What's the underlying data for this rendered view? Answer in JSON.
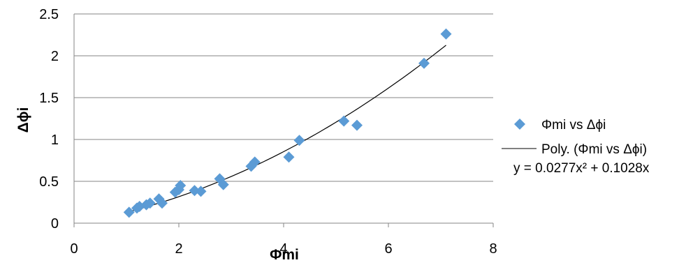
{
  "chart_data": {
    "type": "scatter",
    "xlabel": "Φmi",
    "ylabel": "Δϕi",
    "xlim": [
      0,
      8
    ],
    "ylim": [
      0,
      2.5
    ],
    "x_ticks": [
      "0",
      "2",
      "4",
      "6",
      "8"
    ],
    "y_ticks": [
      "0",
      "0.5",
      "1",
      "1.5",
      "2",
      "2.5"
    ],
    "grid": "horizontal",
    "legend_position": "right",
    "series": [
      {
        "name": "Φmi vs Δϕi",
        "kind": "scatter",
        "color": "#5B9BD5",
        "marker": "diamond",
        "points": [
          {
            "x": 1.05,
            "y": 0.13
          },
          {
            "x": 1.2,
            "y": 0.18
          },
          {
            "x": 1.25,
            "y": 0.2
          },
          {
            "x": 1.38,
            "y": 0.22
          },
          {
            "x": 1.45,
            "y": 0.24
          },
          {
            "x": 1.62,
            "y": 0.29
          },
          {
            "x": 1.68,
            "y": 0.24
          },
          {
            "x": 1.93,
            "y": 0.37
          },
          {
            "x": 2.0,
            "y": 0.4
          },
          {
            "x": 2.03,
            "y": 0.45
          },
          {
            "x": 2.3,
            "y": 0.39
          },
          {
            "x": 2.42,
            "y": 0.38
          },
          {
            "x": 2.78,
            "y": 0.53
          },
          {
            "x": 2.85,
            "y": 0.46
          },
          {
            "x": 3.38,
            "y": 0.68
          },
          {
            "x": 3.45,
            "y": 0.73
          },
          {
            "x": 4.1,
            "y": 0.79
          },
          {
            "x": 4.3,
            "y": 0.99
          },
          {
            "x": 5.15,
            "y": 1.22
          },
          {
            "x": 5.4,
            "y": 1.17
          },
          {
            "x": 6.68,
            "y": 1.91
          },
          {
            "x": 7.1,
            "y": 2.26
          }
        ]
      },
      {
        "name": "Poly. (Φmi vs Δϕi)",
        "kind": "trendline",
        "color": "#000000",
        "equation": "y = 0.0277x² + 0.1028x",
        "coefficients": {
          "a": 0.0277,
          "b": 0.1028,
          "c": 0
        },
        "x_range": [
          1.05,
          7.1
        ]
      }
    ]
  }
}
